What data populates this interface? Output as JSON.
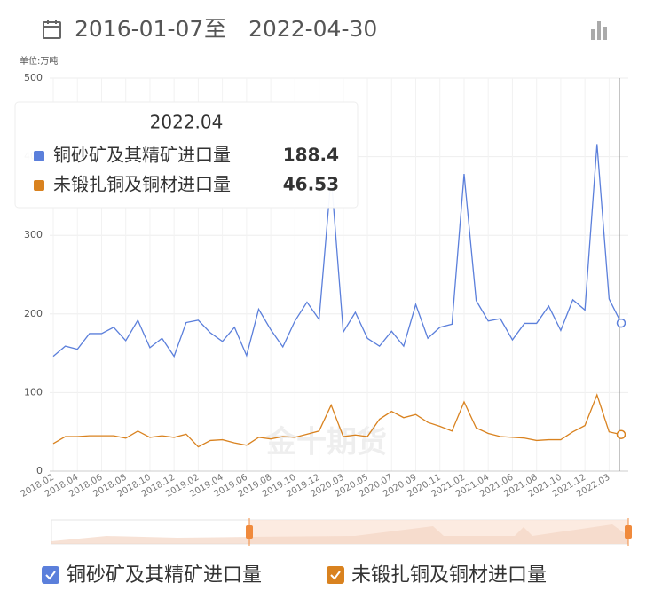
{
  "header": {
    "start": "2016-01-07",
    "separator": "至",
    "end": "2022-04-30"
  },
  "chart_data": {
    "type": "line",
    "unit": "单位:万吨",
    "watermark": "金十期货",
    "categories": [
      "2018.02",
      null,
      "2018.04",
      null,
      "2018.06",
      null,
      "2018.08",
      null,
      "2018.10",
      null,
      "2018.12",
      null,
      "2019.02",
      null,
      "2019.04",
      null,
      "2019.06",
      null,
      "2019.08",
      null,
      "2019.10",
      null,
      "2019.12",
      null,
      "2020.03",
      null,
      "2020.05",
      null,
      "2020.07",
      null,
      "2020.09",
      null,
      "2020.11",
      null,
      "2021.02",
      null,
      "2021.04",
      null,
      "2021.06",
      null,
      "2021.08",
      null,
      "2021.10",
      null,
      "2021.12",
      null,
      "2022.03",
      null
    ],
    "series": [
      {
        "name": "铜砂矿及其精矿进口量",
        "color": "#5b7fdb",
        "values": [
          146,
          159,
          155,
          175,
          175,
          183,
          166,
          192,
          157,
          169,
          146,
          189,
          192,
          176,
          165,
          183,
          147,
          206,
          180,
          158,
          191,
          215,
          193,
          375,
          177,
          202,
          169,
          159,
          178,
          159,
          212,
          169,
          183,
          187,
          378,
          217,
          191,
          194,
          167,
          188,
          188,
          210,
          179,
          218,
          205,
          416,
          219,
          188.4
        ]
      },
      {
        "name": "未锻扎铜及铜材进口量",
        "color": "#d9821f",
        "values": [
          35,
          44,
          44,
          45,
          45,
          45,
          42,
          51,
          43,
          45,
          43,
          47,
          31,
          39,
          40,
          36,
          33,
          43,
          41,
          44,
          43,
          47,
          51,
          84,
          44,
          46,
          44,
          66,
          76,
          68,
          72,
          62,
          57,
          51,
          88,
          55,
          48,
          44,
          43,
          42,
          39,
          40,
          40,
          50,
          58,
          97,
          50,
          46.53
        ]
      }
    ],
    "tooltip": {
      "title": "2022.04"
    },
    "ylim": [
      0,
      500
    ],
    "yticks": [
      0,
      100,
      200,
      300,
      400,
      500
    ],
    "grid": true
  }
}
